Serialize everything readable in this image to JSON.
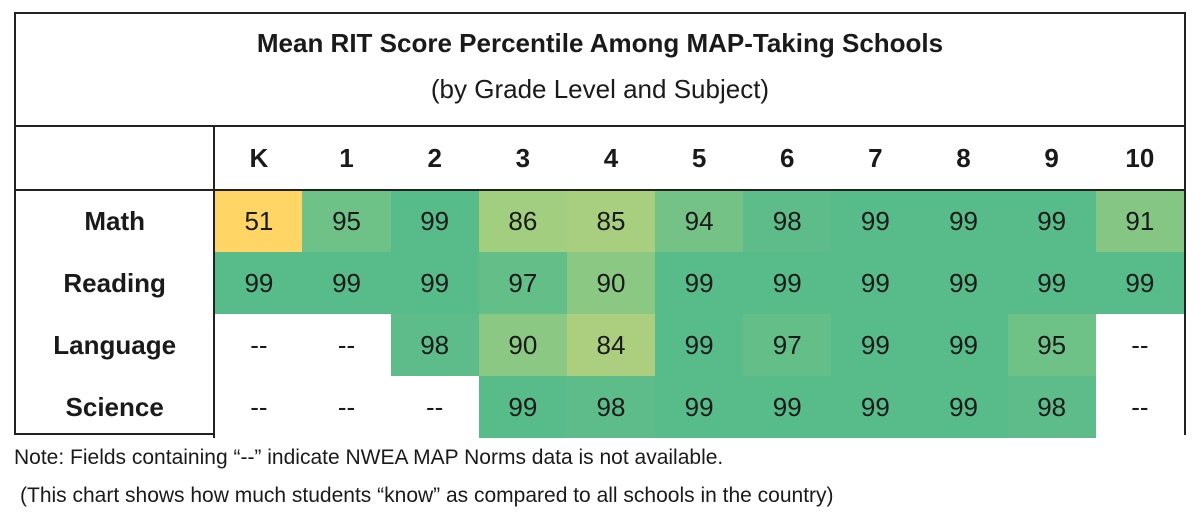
{
  "chart_data": {
    "type": "table",
    "title": "Mean RIT Score Percentile Among MAP-Taking Schools",
    "subtitle": "(by Grade Level and Subject)",
    "columns": [
      "K",
      "1",
      "2",
      "3",
      "4",
      "5",
      "6",
      "7",
      "8",
      "9",
      "10"
    ],
    "rows": [
      {
        "label": "Math",
        "values": [
          "51",
          "95",
          "99",
          "86",
          "85",
          "94",
          "98",
          "99",
          "99",
          "99",
          "91"
        ]
      },
      {
        "label": "Reading",
        "values": [
          "99",
          "99",
          "99",
          "97",
          "90",
          "99",
          "99",
          "99",
          "99",
          "99",
          "99"
        ]
      },
      {
        "label": "Language",
        "values": [
          "--",
          "--",
          "98",
          "90",
          "84",
          "99",
          "97",
          "99",
          "99",
          "95",
          "--"
        ]
      },
      {
        "label": "Science",
        "values": [
          "--",
          "--",
          "--",
          "99",
          "98",
          "99",
          "99",
          "99",
          "99",
          "98",
          "--"
        ]
      }
    ],
    "color_scale": {
      "low": "#ffd666",
      "mid": "#a8cf7f",
      "high": "#57bb8a",
      "missing": "#ffffff"
    }
  },
  "notes": {
    "line1": "Note: Fields containing “--” indicate NWEA MAP Norms data is not available.",
    "line2": "(This chart shows how much students “know” as compared to all schools in the country)"
  }
}
